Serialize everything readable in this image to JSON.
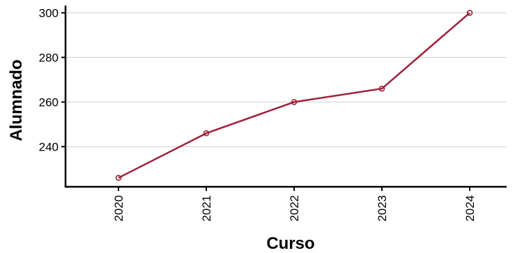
{
  "chart_data": {
    "type": "line",
    "categories": [
      "2020",
      "2021",
      "2022",
      "2023",
      "2024"
    ],
    "series": [
      {
        "values": [
          226,
          246,
          260,
          266,
          300
        ]
      }
    ],
    "xlabel": "Curso",
    "ylabel": "Alumnado",
    "ylim": [
      222,
      302
    ],
    "yticks": [
      240,
      260,
      280,
      300
    ],
    "grid": {
      "horizontal": true,
      "vertical": false
    },
    "line_color": "#a0203a",
    "grid_color": "#d0d0d0",
    "axis_color": "#000000"
  }
}
